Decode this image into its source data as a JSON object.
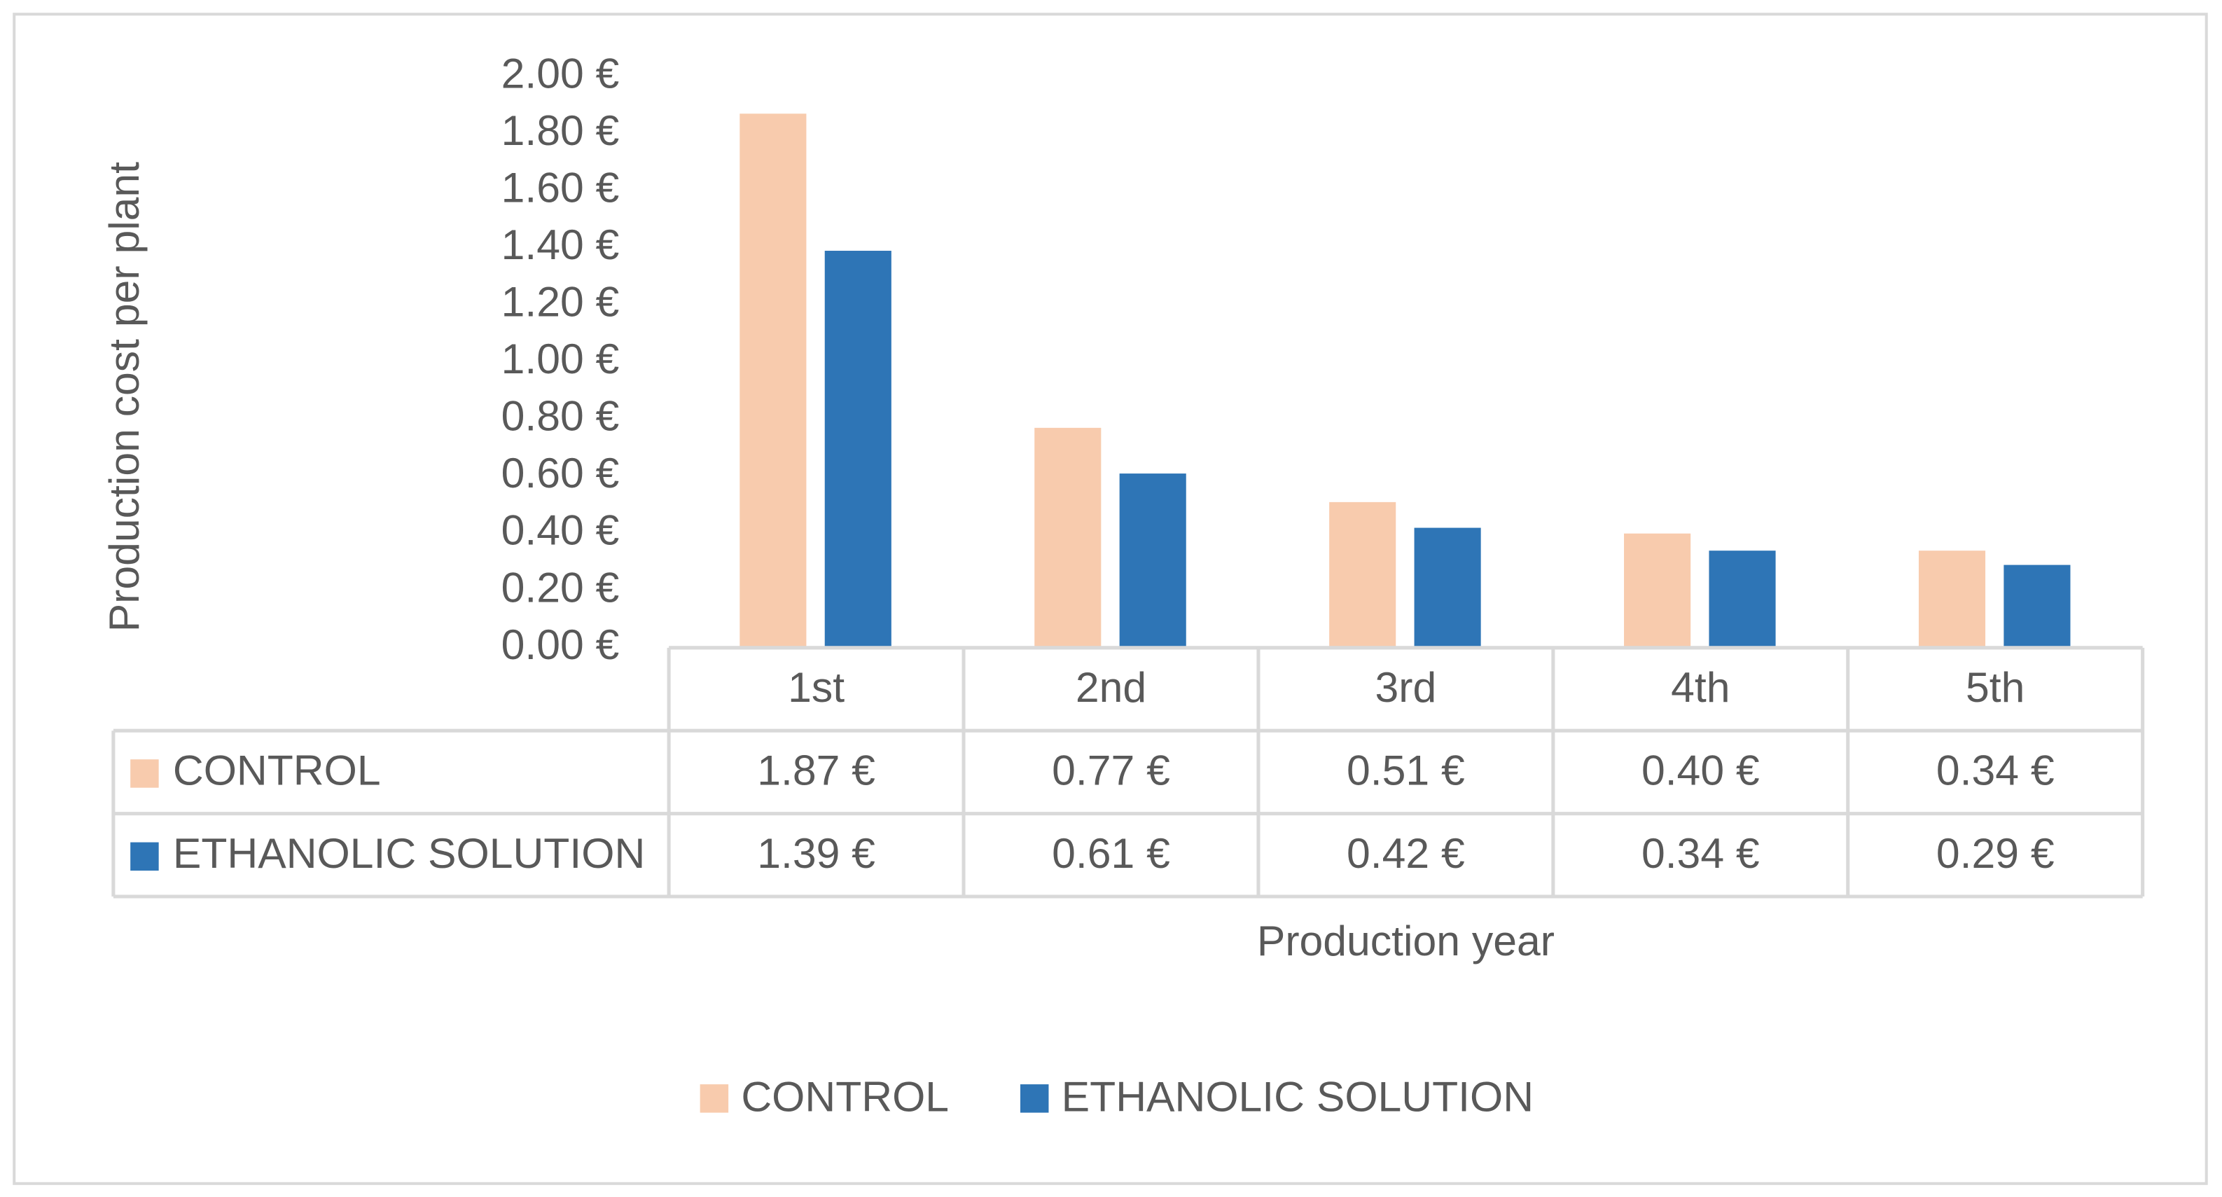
{
  "chart_data": {
    "type": "bar",
    "y_axis_label": "Production cost per plant",
    "x_axis_label": "Production year",
    "categories": [
      "1st",
      "2nd",
      "3rd",
      "4th",
      "5th"
    ],
    "series": [
      {
        "name": "CONTROL",
        "color": "#f8cbad",
        "values": [
          1.87,
          0.77,
          0.51,
          0.4,
          0.34
        ],
        "value_labels": [
          "1.87 €",
          "0.77 €",
          "0.51 €",
          "0.40 €",
          "0.34 €"
        ]
      },
      {
        "name": "ETHANOLIC SOLUTION",
        "color": "#2e75b6",
        "values": [
          1.39,
          0.61,
          0.42,
          0.34,
          0.29
        ],
        "value_labels": [
          "1.39 €",
          "0.61 €",
          "0.42 €",
          "0.34 €",
          "0.29 €"
        ]
      }
    ],
    "ylim": [
      0,
      2
    ],
    "yticks": [
      {
        "value": 0,
        "label": "0.00 €"
      },
      {
        "value": 0.2,
        "label": "0.20 €"
      },
      {
        "value": 0.4,
        "label": "0.40 €"
      },
      {
        "value": 0.6,
        "label": "0.60 €"
      },
      {
        "value": 0.8,
        "label": "0.80 €"
      },
      {
        "value": 1,
        "label": "1.00 €"
      },
      {
        "value": 1.2,
        "label": "1.20 €"
      },
      {
        "value": 1.4,
        "label": "1.40 €"
      },
      {
        "value": 1.6,
        "label": "1.60 €"
      },
      {
        "value": 1.8,
        "label": "1.80 €"
      },
      {
        "value": 2,
        "label": "2.00 €"
      }
    ],
    "grid": false,
    "legend": "bottom",
    "data_table": true
  }
}
